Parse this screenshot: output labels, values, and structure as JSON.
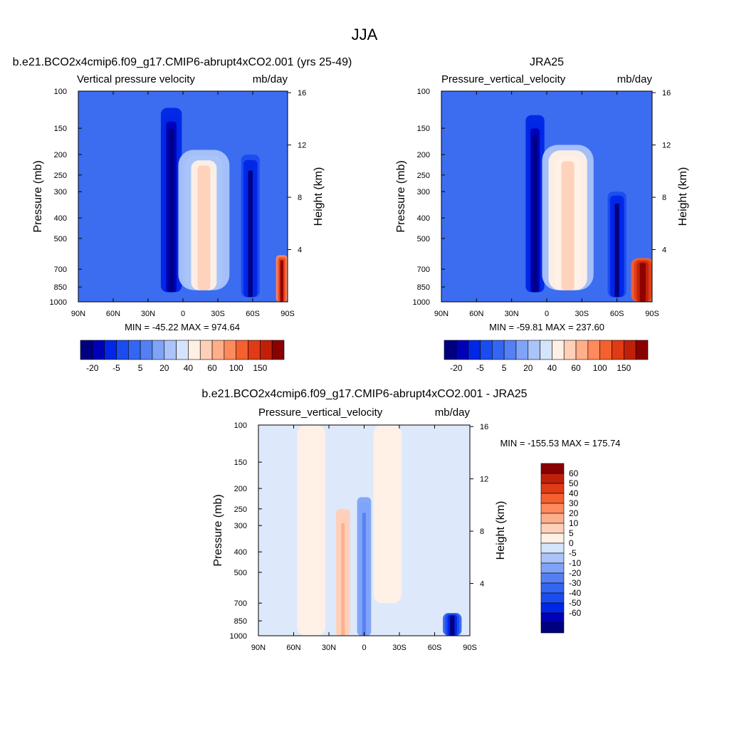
{
  "title": "JJA",
  "colors": {
    "blue_scale": [
      "#00007f",
      "#0000b8",
      "#0026e6",
      "#1a4cf0",
      "#3366f2",
      "#5580f4",
      "#7fa3f7",
      "#aac4f9",
      "#d4e4fc"
    ],
    "red_scale": [
      "#fff0e6",
      "#ffd0b8",
      "#ffae8a",
      "#ff8a5c",
      "#f4602e",
      "#e03b14",
      "#c0200a",
      "#8b0000"
    ],
    "panel_background": "#3c6cf0",
    "missing": "#ffffff"
  },
  "chart_data": [
    {
      "type": "heatmap",
      "panel_id": "model",
      "title": "b.e21.BCO2x4cmip6.f09_g17.CMIP6-abrupt4xCO2.001 (yrs 25-49)",
      "left_string": "Vertical pressure velocity",
      "right_string": "mb/day",
      "ylabel": "Pressure (mb)",
      "ylabel_right": "Height (km)",
      "x_ticks": [
        "90N",
        "60N",
        "30N",
        "0",
        "30S",
        "60S",
        "90S"
      ],
      "x_range": [
        90,
        -90
      ],
      "y_ticks": [
        100,
        150,
        200,
        250,
        300,
        400,
        500,
        700,
        850,
        1000
      ],
      "y_range": [
        100,
        1000
      ],
      "height_ticks": [
        16,
        12,
        8,
        4
      ],
      "min_max_text": "MIN = -45.22  MAX = 974.64",
      "min": -45.22,
      "max": 974.64,
      "colorbar": {
        "orientation": "horizontal",
        "levels": [
          "-20",
          "-5",
          "5",
          "20",
          "40",
          "60",
          "100",
          "150"
        ]
      },
      "features": [
        {
          "lat": 10,
          "p_top": 120,
          "p_bot": 900,
          "value": -40,
          "width": 9
        },
        {
          "lat": -18,
          "p_top": 190,
          "p_bot": 880,
          "value": 15,
          "width": 22
        },
        {
          "lat": -58,
          "p_top": 200,
          "p_bot": 950,
          "value": -35,
          "width": 8
        },
        {
          "lat": -85,
          "p_top": 600,
          "p_bot": 1000,
          "value": 120,
          "width": 5
        }
      ]
    },
    {
      "type": "heatmap",
      "panel_id": "obs",
      "title": "JRA25",
      "left_string": "Pressure_vertical_velocity",
      "right_string": "mb/day",
      "ylabel": "Pressure (mb)",
      "ylabel_right": "Height (km)",
      "x_ticks": [
        "90N",
        "60N",
        "30N",
        "0",
        "30S",
        "60S",
        "90S"
      ],
      "x_range": [
        90,
        -90
      ],
      "y_ticks": [
        100,
        150,
        200,
        250,
        300,
        400,
        500,
        700,
        850,
        1000
      ],
      "y_range": [
        100,
        1000
      ],
      "height_ticks": [
        16,
        12,
        8,
        4
      ],
      "min_max_text": "MIN = -59.81  MAX = 237.60",
      "min": -59.81,
      "max": 237.6,
      "colorbar": {
        "orientation": "horizontal",
        "levels": [
          "-20",
          "-5",
          "5",
          "20",
          "40",
          "60",
          "100",
          "150"
        ]
      },
      "features": [
        {
          "lat": 10,
          "p_top": 130,
          "p_bot": 900,
          "value": -45,
          "width": 8
        },
        {
          "lat": -18,
          "p_top": 180,
          "p_bot": 880,
          "value": 18,
          "width": 22
        },
        {
          "lat": -60,
          "p_top": 300,
          "p_bot": 950,
          "value": -35,
          "width": 8
        },
        {
          "lat": -82,
          "p_top": 620,
          "p_bot": 1000,
          "value": 150,
          "width": 10
        }
      ]
    },
    {
      "type": "heatmap",
      "panel_id": "diff",
      "title": "b.e21.BCO2x4cmip6.f09_g17.CMIP6-abrupt4xCO2.001 - JRA25",
      "left_string": "Pressure_vertical_velocity",
      "right_string": "mb/day",
      "ylabel": "Pressure (mb)",
      "ylabel_right": "Height (km)",
      "x_ticks": [
        "90N",
        "60N",
        "30N",
        "0",
        "30S",
        "60S",
        "90S"
      ],
      "x_range": [
        90,
        -90
      ],
      "y_ticks": [
        100,
        150,
        200,
        250,
        300,
        400,
        500,
        700,
        850,
        1000
      ],
      "y_range": [
        100,
        1000
      ],
      "height_ticks": [
        16,
        12,
        8,
        4
      ],
      "min_max_text": "MIN = -155.53  MAX = 175.74",
      "min": -155.53,
      "max": 175.74,
      "colorbar": {
        "orientation": "vertical",
        "levels": [
          "60",
          "50",
          "40",
          "30",
          "20",
          "10",
          "5",
          "0",
          "-5",
          "-10",
          "-20",
          "-30",
          "-40",
          "-50",
          "-60"
        ]
      },
      "features": [
        {
          "lat": 18,
          "p_top": 250,
          "p_bot": 1000,
          "value": 12,
          "width": 6
        },
        {
          "lat": 0,
          "p_top": 220,
          "p_bot": 1000,
          "value": -10,
          "width": 6
        },
        {
          "lat": 45,
          "p_top": 100,
          "p_bot": 1000,
          "value": 3,
          "width": 12
        },
        {
          "lat": -20,
          "p_top": 100,
          "p_bot": 700,
          "value": 3,
          "width": 12
        },
        {
          "lat": -75,
          "p_top": 780,
          "p_bot": 1000,
          "value": -55,
          "width": 8
        }
      ]
    }
  ]
}
